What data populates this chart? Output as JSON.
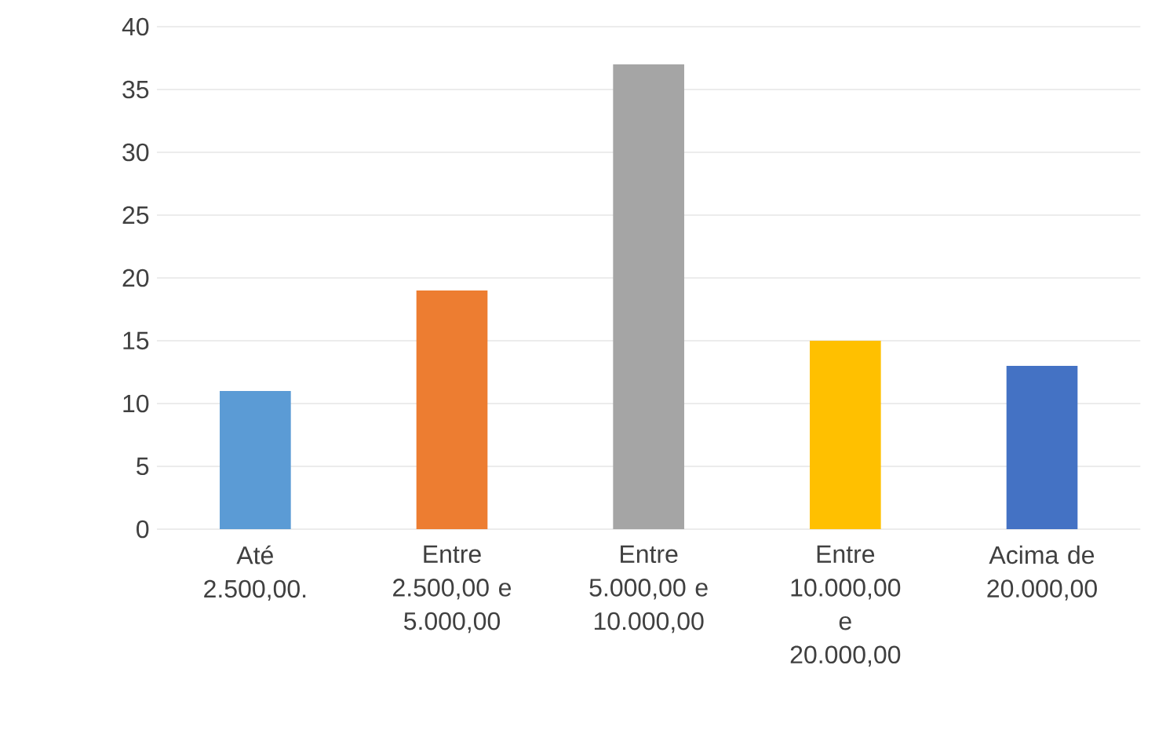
{
  "chart_data": {
    "type": "bar",
    "categories": [
      "Até 2.500,00.",
      "Entre 2.500,00 e 5.000,00",
      "Entre 5.000,00 e 10.000,00",
      "Entre 10.000,00 e 20.000,00",
      "Acima de 20.000,00"
    ],
    "values": [
      11,
      19,
      37,
      15,
      13
    ],
    "colors": [
      "#5b9bd5",
      "#ed7d31",
      "#a5a5a5",
      "#ffc000",
      "#4472c4"
    ],
    "ylim": [
      0,
      40
    ],
    "yticks": [
      0,
      5,
      10,
      15,
      20,
      25,
      30,
      35,
      40
    ],
    "grid": "y"
  }
}
